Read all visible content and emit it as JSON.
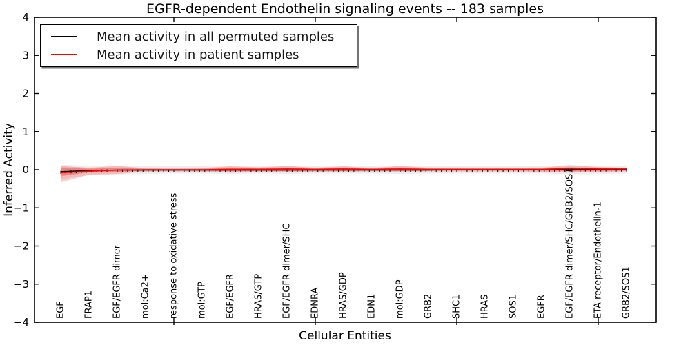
{
  "figure": {
    "title": "EGFR-dependent Endothelin signaling events -- 183 samples",
    "xlabel": "Cellular Entities",
    "ylabel": "Inferred Activity"
  },
  "legend": {
    "items": [
      {
        "label": "Mean activity in all permuted samples",
        "color": "#000000"
      },
      {
        "label": "Mean activity in patient samples",
        "color": "#ff0000"
      }
    ]
  },
  "chart_data": {
    "type": "line",
    "title": "EGFR-dependent Endothelin signaling events -- 183 samples",
    "xlabel": "Cellular Entities",
    "ylabel": "Inferred Activity",
    "ylim": [
      -4,
      4
    ],
    "ytick_values": [
      4,
      3,
      2,
      1,
      0,
      -1,
      -2,
      -3,
      -4
    ],
    "ytick_labels": [
      "4",
      "3",
      "2",
      "1",
      "0",
      "−1",
      "−2",
      "−3",
      "−4"
    ],
    "grid": false,
    "legend_position": "upper left",
    "categories": [
      "EGF",
      "FRAP1",
      "EGF/EGFR dimer",
      "mol:Ca2+",
      "response to oxidative stress",
      "mol:GTP",
      "EGF/EGFR",
      "HRAS/GTP",
      "EGF/EGFR dimer/SHC",
      "EDNRA",
      "HRAS/GDP",
      "EDN1",
      "mol:GDP",
      "GRB2",
      "SHC1",
      "HRAS",
      "SOS1",
      "EGFR",
      "EGF/EGFR dimer/SHC/GRB2/SOS1",
      "ETA receptor/Endothelin-1",
      "GRB2/SOS1"
    ],
    "x_major_tick_indices": [
      4,
      9,
      14,
      19
    ],
    "series": [
      {
        "name": "Mean activity in all permuted samples",
        "color": "#000000",
        "style": "solid-with-tick-markers",
        "values": [
          -0.05,
          -0.02,
          -0.01,
          -0.01,
          -0.01,
          -0.01,
          -0.01,
          -0.01,
          -0.01,
          -0.01,
          -0.01,
          -0.01,
          -0.01,
          -0.01,
          0,
          0,
          0,
          0,
          0.01,
          0.01,
          0.01
        ]
      },
      {
        "name": "Mean activity in patient samples",
        "color": "#ff0000",
        "style": "solid",
        "values": [
          -0.08,
          -0.04,
          -0.01,
          0,
          0,
          0,
          0.01,
          0.01,
          0.02,
          0.01,
          0.02,
          0.01,
          0.02,
          0.01,
          0.01,
          0.01,
          0.01,
          0.01,
          0.03,
          0.02,
          0.02
        ]
      }
    ],
    "bands": [
      {
        "name": "permuted-samples-range",
        "color": "#000000",
        "upper": [
          0.13,
          0.11,
          0.11,
          0.1,
          0.1,
          0.1,
          0.11,
          0.1,
          0.11,
          0.1,
          0.1,
          0.1,
          0.11,
          0.1,
          0.1,
          0.1,
          0.1,
          0.1,
          0.12,
          0.11,
          0.1
        ],
        "lower": [
          -0.25,
          -0.14,
          -0.12,
          -0.11,
          -0.1,
          -0.1,
          -0.11,
          -0.1,
          -0.11,
          -0.1,
          -0.1,
          -0.1,
          -0.11,
          -0.1,
          -0.1,
          -0.1,
          -0.1,
          -0.1,
          -0.12,
          -0.11,
          -0.1
        ]
      },
      {
        "name": "patient-samples-range",
        "color": "#ff0000",
        "upper": [
          0.1,
          0.05,
          0.1,
          0.04,
          0.03,
          0.04,
          0.09,
          0.06,
          0.1,
          0.05,
          0.09,
          0.04,
          0.1,
          0.05,
          0.04,
          0.04,
          0.05,
          0.05,
          0.12,
          0.07,
          0.05
        ],
        "lower": [
          -0.33,
          -0.13,
          -0.11,
          -0.05,
          -0.04,
          -0.05,
          -0.08,
          -0.06,
          -0.07,
          -0.05,
          -0.05,
          -0.04,
          -0.05,
          -0.04,
          -0.04,
          -0.04,
          -0.04,
          -0.05,
          -0.08,
          -0.06,
          -0.04
        ]
      }
    ]
  }
}
